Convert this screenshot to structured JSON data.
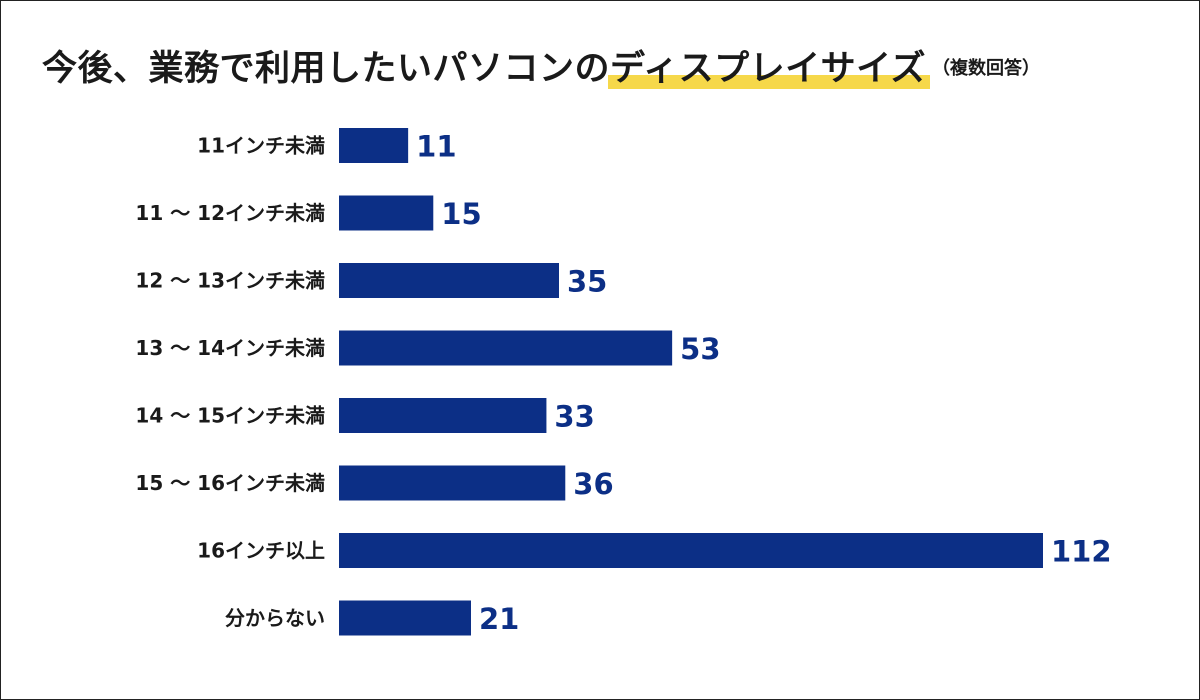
{
  "title": {
    "main": "今後、業務で利用したいパソコンの",
    "highlight": "ディスプレイサイズ",
    "sub": "（複数回答）"
  },
  "colors": {
    "bar": "#0c2f86",
    "value_text": "#0c2f86",
    "highlight": "#f6d84a"
  },
  "chart_data": {
    "type": "bar",
    "orientation": "horizontal",
    "categories": [
      "11インチ未満",
      "11 〜 12インチ未満",
      "12 〜 13インチ未満",
      "13 〜 14インチ未満",
      "14 〜 15インチ未満",
      "15 〜 16インチ未満",
      "16インチ以上",
      "分からない"
    ],
    "values": [
      11,
      15,
      35,
      53,
      33,
      36,
      112,
      21
    ],
    "title": "今後、業務で利用したいパソコンのディスプレイサイズ",
    "subtitle": "（複数回答）",
    "xlim": [
      0,
      112
    ],
    "grid": false,
    "data_labels": true
  }
}
